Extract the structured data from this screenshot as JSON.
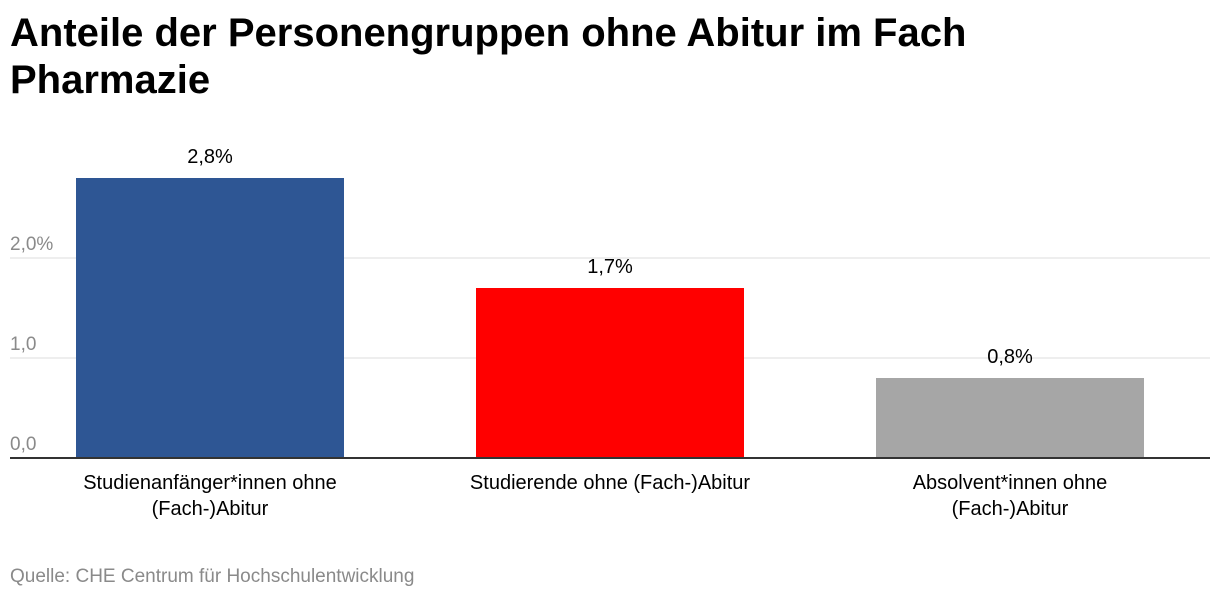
{
  "title": "Anteile der Personengruppen ohne Abitur im Fach Pharmazie",
  "source": "Quelle: CHE Centrum für Hochschulentwicklung",
  "chart_data": {
    "type": "bar",
    "title": "Anteile der Personengruppen ohne Abitur im Fach Pharmazie",
    "categories": [
      [
        "Studienanfänger*innen ohne",
        "(Fach-)Abitur"
      ],
      [
        "Studierende ohne (Fach-)Abitur"
      ],
      [
        "Absolvent*innen ohne",
        "(Fach-)Abitur"
      ]
    ],
    "values": [
      2.8,
      1.7,
      0.8
    ],
    "value_labels": [
      "2,8%",
      "1,7%",
      "0,8%"
    ],
    "colors": [
      "#2e5694",
      "#ff0000",
      "#a6a6a6"
    ],
    "yticks": [
      0,
      1,
      2
    ],
    "ytick_labels": [
      "0,0",
      "1,0",
      "2,0%"
    ],
    "ylim": [
      0,
      3
    ],
    "xlabel": "",
    "ylabel": "",
    "grid": true,
    "legend": "none"
  }
}
